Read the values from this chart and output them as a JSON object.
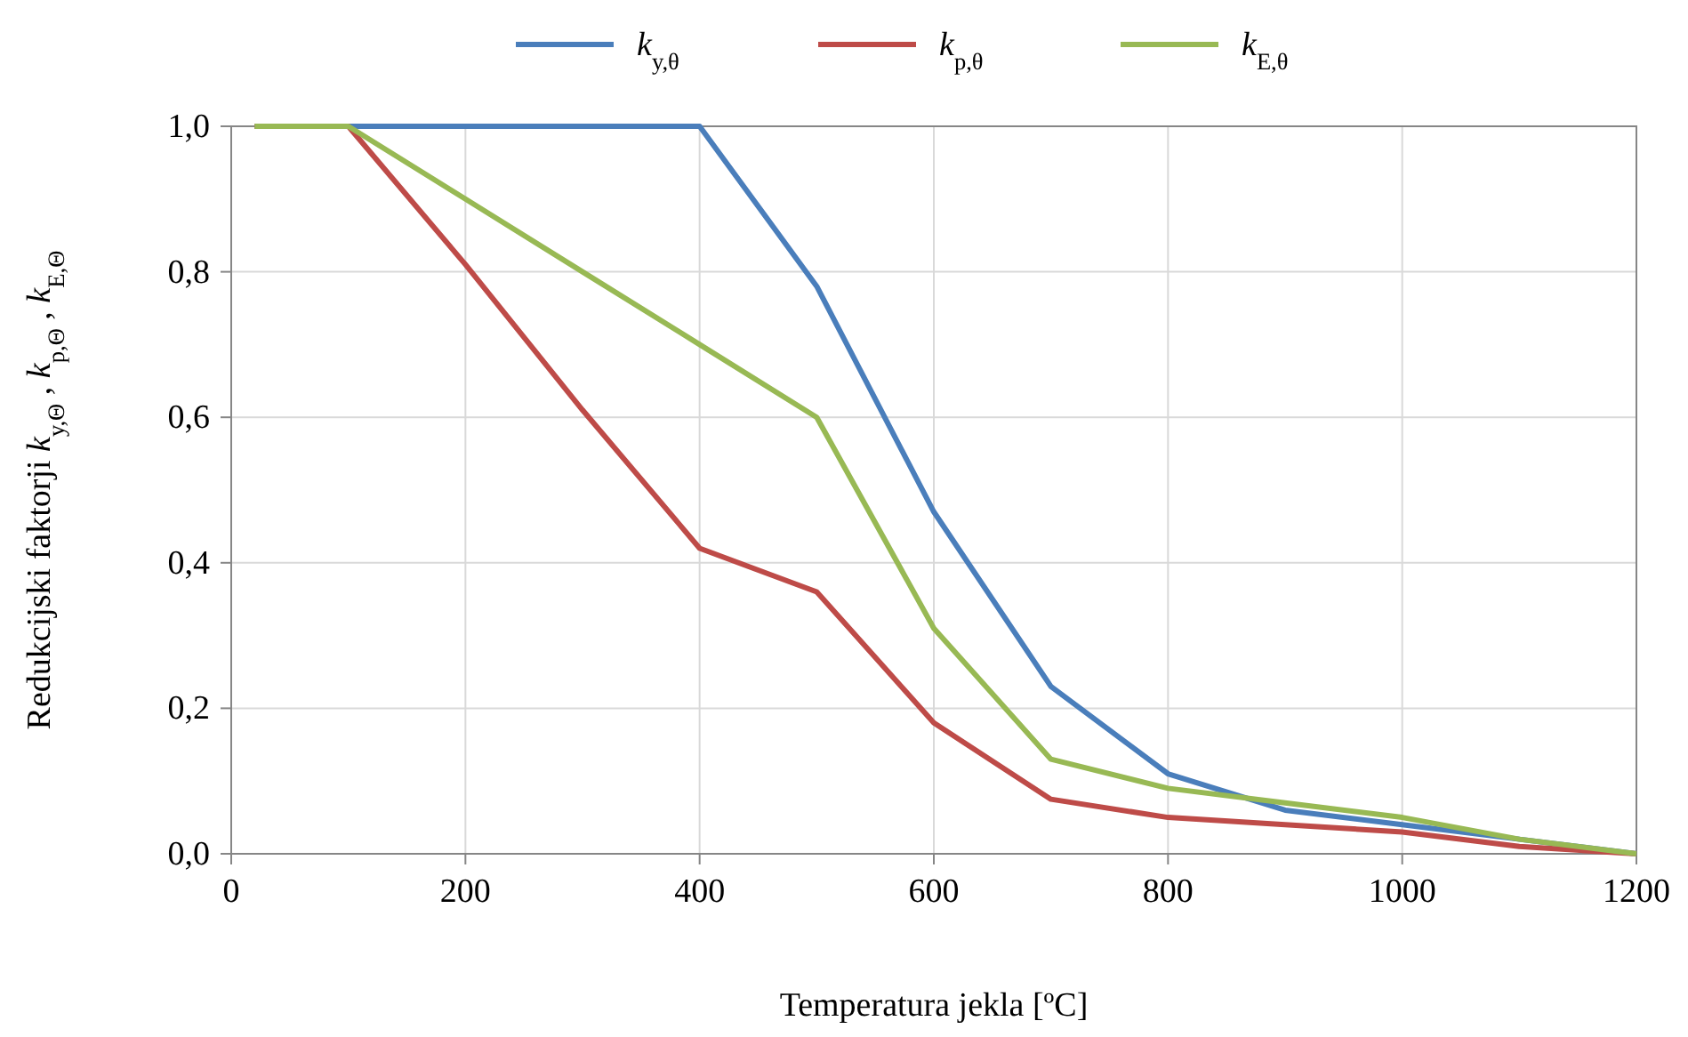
{
  "chart_data": {
    "type": "line",
    "xlabel": "Temperatura jekla [ºC]",
    "ylabel": "Redukcijski faktorji k$_{y,Θ}$, k$_{p,Θ}$, k$_{E,Θ}$",
    "x": [
      20,
      100,
      200,
      300,
      400,
      500,
      600,
      700,
      800,
      900,
      1000,
      1100,
      1200
    ],
    "series": [
      {
        "name": "k$_{y,θ}$",
        "color": "#4a7ebb",
        "values": [
          1,
          1,
          1,
          1,
          1,
          0.78,
          0.47,
          0.23,
          0.11,
          0.06,
          0.04,
          0.02,
          0
        ]
      },
      {
        "name": "k$_{p,θ}$",
        "color": "#be4b48",
        "values": [
          1,
          1,
          0.81,
          0.61,
          0.42,
          0.36,
          0.18,
          0.075,
          0.05,
          0.04,
          0.03,
          0.01,
          0
        ]
      },
      {
        "name": "k$_{E,θ}$",
        "color": "#98b954",
        "values": [
          1,
          1,
          0.9,
          0.8,
          0.7,
          0.6,
          0.31,
          0.13,
          0.09,
          0.07,
          0.05,
          0.02,
          0
        ]
      }
    ],
    "xlim": [
      0,
      1200
    ],
    "xticks": [
      0,
      200,
      400,
      600,
      800,
      1000,
      1200
    ],
    "ylim": [
      0,
      1
    ],
    "yticks": [
      {
        "value": 0,
        "label": "0,0"
      },
      {
        "value": 0.2,
        "label": "0,2"
      },
      {
        "value": 0.4,
        "label": "0,4"
      },
      {
        "value": 0.6,
        "label": "0,6"
      },
      {
        "value": 0.8,
        "label": "0,8"
      },
      {
        "value": 1,
        "label": "1,0"
      }
    ],
    "grid": true,
    "legend": "top",
    "marker": "none",
    "line_style": "solid"
  }
}
